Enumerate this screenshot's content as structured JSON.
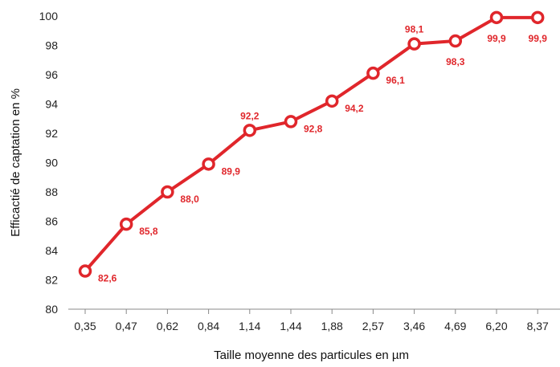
{
  "chart_data": {
    "type": "line",
    "title": "",
    "xlabel": "Taille moyenne des particules en µm",
    "ylabel": "Efficactié de captation en %",
    "categories": [
      "0,35",
      "0,47",
      "0,62",
      "0,84",
      "1,14",
      "1,44",
      "1,88",
      "2,57",
      "3,46",
      "4,69",
      "6,20",
      "8,37"
    ],
    "ylim": [
      80,
      100
    ],
    "yticks": [
      "80",
      "82",
      "84",
      "86",
      "88",
      "90",
      "92",
      "94",
      "96",
      "98",
      "100"
    ],
    "series": [
      {
        "values": [
          82.6,
          85.8,
          88.0,
          89.9,
          92.2,
          92.8,
          94.2,
          96.1,
          98.1,
          98.3,
          99.9,
          99.9
        ],
        "labels": [
          "82,6",
          "85,8",
          "88,0",
          "89,9",
          "92,2",
          "92,8",
          "94,2",
          "96,1",
          "98,1",
          "98,3",
          "99,9",
          "99,9"
        ],
        "color": "#e0262b"
      }
    ],
    "grid": false,
    "legend": "none"
  }
}
